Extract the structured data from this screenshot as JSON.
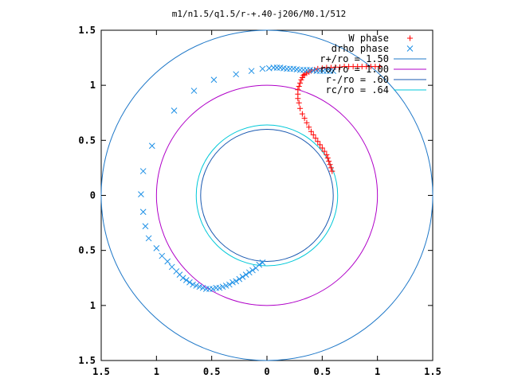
{
  "chart_data": {
    "type": "scatter",
    "title": "m1/n1.5/q1.5/r-+.40-j206/M0.1/512",
    "xlabel": "",
    "ylabel": "",
    "xlim": [
      -1.5,
      1.5
    ],
    "ylim": [
      -1.5,
      1.5
    ],
    "x_ticks": [
      "1.5",
      "1",
      "0.5",
      "0",
      "0.5",
      "1",
      "1.5"
    ],
    "y_ticks": [
      "1.5",
      "1",
      "0.5",
      "0",
      "0.5",
      "1",
      "1.5"
    ],
    "grid": false,
    "legend_position": "top-right",
    "series": [
      {
        "name": "W phase",
        "marker": "plus",
        "color": "#ff0000",
        "x": [
          0.59,
          0.58,
          0.57,
          0.56,
          0.55,
          0.54,
          0.52,
          0.5,
          0.48,
          0.46,
          0.44,
          0.42,
          0.4,
          0.38,
          0.36,
          0.34,
          0.32,
          0.3,
          0.29,
          0.28,
          0.28,
          0.28,
          0.29,
          0.3,
          0.31,
          0.32,
          0.33,
          0.34,
          0.36,
          0.38,
          0.4,
          0.43,
          0.46,
          0.5,
          0.54,
          0.58,
          0.62,
          0.66,
          0.7,
          0.74,
          0.78,
          0.82,
          0.86,
          0.9,
          0.94,
          0.98,
          1.02
        ],
        "y": [
          0.22,
          0.25,
          0.28,
          0.31,
          0.34,
          0.37,
          0.4,
          0.43,
          0.46,
          0.49,
          0.52,
          0.55,
          0.58,
          0.62,
          0.66,
          0.7,
          0.74,
          0.79,
          0.84,
          0.88,
          0.92,
          0.96,
          0.99,
          1.02,
          1.05,
          1.07,
          1.09,
          1.1,
          1.11,
          1.12,
          1.13,
          1.14,
          1.15,
          1.155,
          1.16,
          1.16,
          1.165,
          1.165,
          1.17,
          1.17,
          1.17,
          1.17,
          1.17,
          1.17,
          1.17,
          1.17,
          1.17
        ]
      },
      {
        "name": "drho phase",
        "marker": "cross",
        "color": "#1e90e6",
        "x": [
          -0.04,
          -0.07,
          -0.1,
          -0.13,
          -0.16,
          -0.19,
          -0.22,
          -0.25,
          -0.28,
          -0.31,
          -0.34,
          -0.37,
          -0.4,
          -0.43,
          -0.46,
          -0.49,
          -0.52,
          -0.55,
          -0.58,
          -0.61,
          -0.64,
          -0.67,
          -0.7,
          -0.73,
          -0.76,
          -0.79,
          -0.82,
          -0.86,
          -0.9,
          -0.95,
          -1.0,
          -1.07,
          -1.1,
          -1.12,
          -1.14,
          -1.12,
          -1.04,
          -0.84,
          -0.66,
          -0.48,
          -0.28,
          -0.14,
          -0.04,
          0.02,
          0.06,
          0.09,
          0.12,
          0.15,
          0.18,
          0.21,
          0.24,
          0.27,
          0.3,
          0.33,
          0.36,
          0.39,
          0.42,
          0.45,
          0.48,
          0.51,
          0.54,
          0.57,
          0.6
        ],
        "y": [
          -0.61,
          -0.63,
          -0.66,
          -0.68,
          -0.7,
          -0.72,
          -0.74,
          -0.76,
          -0.78,
          -0.79,
          -0.81,
          -0.82,
          -0.83,
          -0.84,
          -0.84,
          -0.85,
          -0.85,
          -0.85,
          -0.84,
          -0.83,
          -0.82,
          -0.81,
          -0.79,
          -0.77,
          -0.75,
          -0.72,
          -0.69,
          -0.65,
          -0.6,
          -0.55,
          -0.48,
          -0.39,
          -0.28,
          -0.15,
          0.01,
          0.22,
          0.45,
          0.77,
          0.95,
          1.05,
          1.1,
          1.13,
          1.15,
          1.155,
          1.16,
          1.16,
          1.16,
          1.155,
          1.15,
          1.15,
          1.15,
          1.145,
          1.14,
          1.14,
          1.14,
          1.14,
          1.135,
          1.13,
          1.13,
          1.13,
          1.13,
          1.13,
          1.13
        ]
      }
    ],
    "circles": [
      {
        "label": "r+/ro = 1.50",
        "radius": 1.5,
        "color": "#1f78c8"
      },
      {
        "label": "ro/ro = 1.00",
        "radius": 1.0,
        "color": "#b000c8"
      },
      {
        "label": "r-/ro = .60",
        "radius": 0.6,
        "color": "#1858b0"
      },
      {
        "label": "rc/ro = .64",
        "radius": 0.64,
        "color": "#00c8d8"
      }
    ]
  }
}
